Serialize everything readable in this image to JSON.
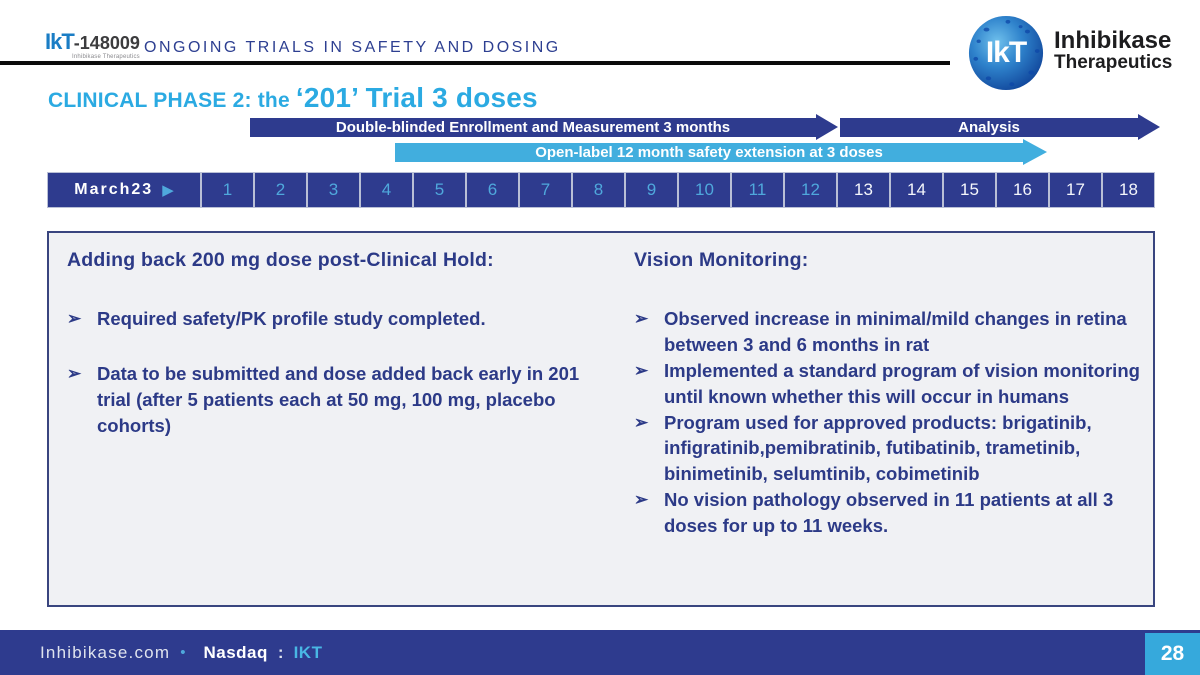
{
  "header": {
    "brand_code_prefix": "IkT",
    "brand_code_suffix": "-148009",
    "brand_caption": "Inhibikase Therapeutics",
    "section_title": "ONGOING TRIALS IN SAFETY AND DOSING",
    "logo_monogram": "IkT",
    "company_name_line1": "Inhibikase",
    "company_name_line2": "Therapeutics"
  },
  "slide_title": {
    "prefix": "CLINICAL PHASE 2:  the ",
    "emphasis": "‘201’ Trial 3 doses"
  },
  "gantt": {
    "arrow_enrollment": "Double-blinded Enrollment and Measurement 3 months",
    "arrow_analysis": "Analysis",
    "arrow_open_label": "Open-label 12 month safety extension at 3 doses"
  },
  "month_bar": {
    "start_label": "March23",
    "start_marker": "▶",
    "open_label_months": [
      "1",
      "2",
      "3",
      "4",
      "5",
      "6",
      "7",
      "8",
      "9",
      "10",
      "11",
      "12"
    ],
    "analysis_months": [
      "13",
      "14",
      "15",
      "16",
      "17",
      "18"
    ]
  },
  "bullet_glyph": "➢",
  "left_panel": {
    "heading": "Adding back 200 mg dose post-Clinical Hold:",
    "bullets": [
      "Required safety/PK profile study completed.",
      "Data to be submitted and dose added back early in 201 trial (after 5 patients each at 50 mg, 100 mg, placebo cohorts)"
    ]
  },
  "right_panel": {
    "heading": "Vision Monitoring:",
    "bullets": [
      "Observed increase in minimal/mild changes in retina between 3 and  6 months in rat",
      "Implemented a standard program of vision monitoring until known whether this will occur in humans",
      "Program used for approved products: brigatinib, infigratinib,pemibratinib, futibatinib, trametinib, binimetinib, selumtinib, cobimetinib",
      "No vision pathology observed in 11 patients at all 3 doses for up to 11 weeks."
    ]
  },
  "footer": {
    "website": "Inhibikase.com",
    "separator": "•",
    "exchange": "Nasdaq",
    "colon": ":",
    "ticker": "IKT",
    "page_number": "28"
  },
  "colors": {
    "navy": "#2e3b8e",
    "light_blue": "#41aede",
    "title_blue": "#2baae2",
    "text_navy": "#2c3a87",
    "panel_bg": "#f0f1f4"
  }
}
